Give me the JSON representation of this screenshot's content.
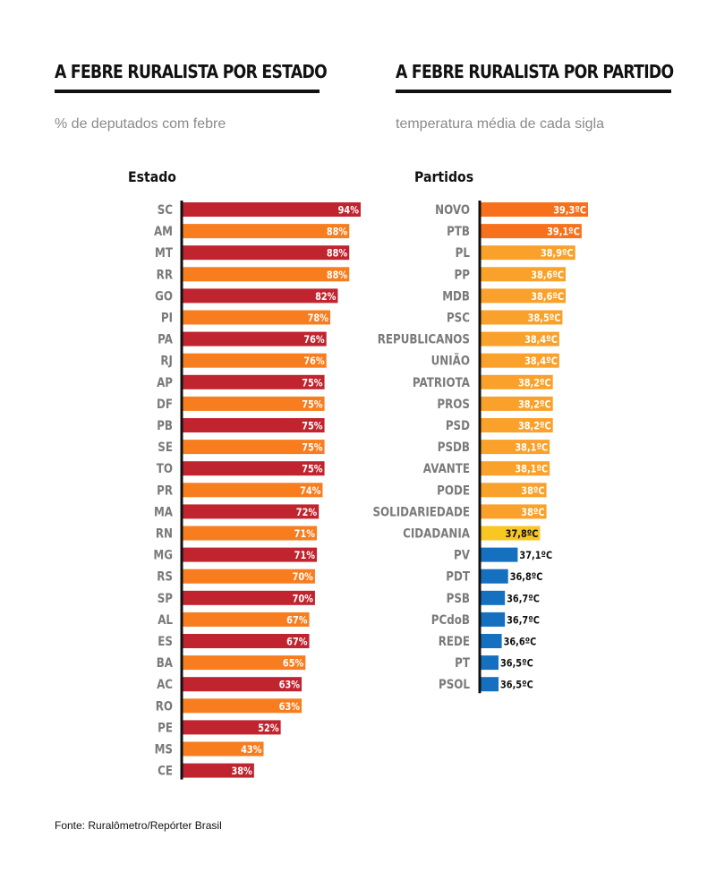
{
  "left": {
    "title": "A FEBRE RURALISTA POR ESTADO",
    "subtitle": "% de deputados com febre",
    "column_header": "Estado"
  },
  "right": {
    "title": "A FEBRE RURALISTA POR PARTIDO",
    "subtitle": "temperatura média de cada sigla",
    "column_header": "Partidos"
  },
  "source": "Fonte: Ruralômetro/Repórter Brasil",
  "colors": {
    "red": "#c0242f",
    "orange": "#f77d1f",
    "deep_orange": "#f7711c",
    "amber": "#f9a12a",
    "yellow": "#f9c623",
    "blue": "#1570bf",
    "label_gray": "#7a7a7a",
    "axis": "#111111"
  },
  "chart_data": [
    {
      "type": "bar",
      "orientation": "horizontal",
      "categories": [
        "SC",
        "AM",
        "MT",
        "RR",
        "GO",
        "PI",
        "PA",
        "RJ",
        "AP",
        "DF",
        "PB",
        "SE",
        "TO",
        "PR",
        "MA",
        "RN",
        "MG",
        "RS",
        "SP",
        "AL",
        "ES",
        "BA",
        "AC",
        "RO",
        "PE",
        "MS",
        "CE"
      ],
      "values": [
        94,
        88,
        88,
        88,
        82,
        78,
        76,
        76,
        75,
        75,
        75,
        75,
        75,
        74,
        72,
        71,
        71,
        70,
        70,
        67,
        67,
        65,
        63,
        63,
        52,
        43,
        38
      ],
      "labels": [
        "94%",
        "88%",
        "88%",
        "88%",
        "82%",
        "78%",
        "76%",
        "76%",
        "75%",
        "75%",
        "75%",
        "75%",
        "75%",
        "74%",
        "72%",
        "71%",
        "71%",
        "70%",
        "70%",
        "67%",
        "67%",
        "65%",
        "63%",
        "63%",
        "52%",
        "43%",
        "38%"
      ],
      "bar_colors": [
        "red",
        "orange",
        "red",
        "orange",
        "red",
        "orange",
        "red",
        "orange",
        "red",
        "orange",
        "red",
        "orange",
        "red",
        "orange",
        "red",
        "orange",
        "red",
        "orange",
        "red",
        "orange",
        "red",
        "orange",
        "red",
        "orange",
        "red",
        "orange",
        "red"
      ],
      "title": "A FEBRE RURALISTA POR ESTADO",
      "subtitle": "% de deputados com febre",
      "xlabel": "",
      "ylabel": "Estado",
      "xlim": [
        0,
        94
      ],
      "grid": false
    },
    {
      "type": "bar",
      "orientation": "horizontal",
      "categories": [
        "NOVO",
        "PTB",
        "PL",
        "PP",
        "MDB",
        "PSC",
        "REPUBLICANOS",
        "UNIÃO",
        "PATRIOTA",
        "PROS",
        "PSD",
        "PSDB",
        "AVANTE",
        "PODE",
        "SOLIDARIEDADE",
        "CIDADANIA",
        "PV",
        "PDT",
        "PSB",
        "PCdoB",
        "REDE",
        "PT",
        "PSOL"
      ],
      "values": [
        39.3,
        39.1,
        38.9,
        38.6,
        38.6,
        38.5,
        38.4,
        38.4,
        38.2,
        38.2,
        38.2,
        38.1,
        38.1,
        38.0,
        38.0,
        37.8,
        37.1,
        36.8,
        36.7,
        36.7,
        36.6,
        36.5,
        36.5
      ],
      "labels": [
        "39,3ºC",
        "39,1ºC",
        "38,9ºC",
        "38,6ºC",
        "38,6ºC",
        "38,5ºC",
        "38,4ºC",
        "38,4ºC",
        "38,2ºC",
        "38,2ºC",
        "38,2ºC",
        "38,1ºC",
        "38,1ºC",
        "38ºC",
        "38ºC",
        "37,8ºC",
        "37,1ºC",
        "36,8ºC",
        "36,7ºC",
        "36,7ºC",
        "36,6ºC",
        "36,5ºC",
        "36,5ºC"
      ],
      "bar_colors": [
        "deep_orange",
        "deep_orange",
        "amber",
        "amber",
        "amber",
        "amber",
        "amber",
        "amber",
        "amber",
        "amber",
        "amber",
        "amber",
        "amber",
        "amber",
        "amber",
        "yellow",
        "blue",
        "blue",
        "blue",
        "blue",
        "blue",
        "blue",
        "blue"
      ],
      "title": "A FEBRE RURALISTA POR PARTIDO",
      "subtitle": "temperatura média de cada sigla",
      "xlabel": "",
      "ylabel": "Partidos",
      "xlim": [
        36.5,
        39.3
      ],
      "grid": false
    }
  ]
}
